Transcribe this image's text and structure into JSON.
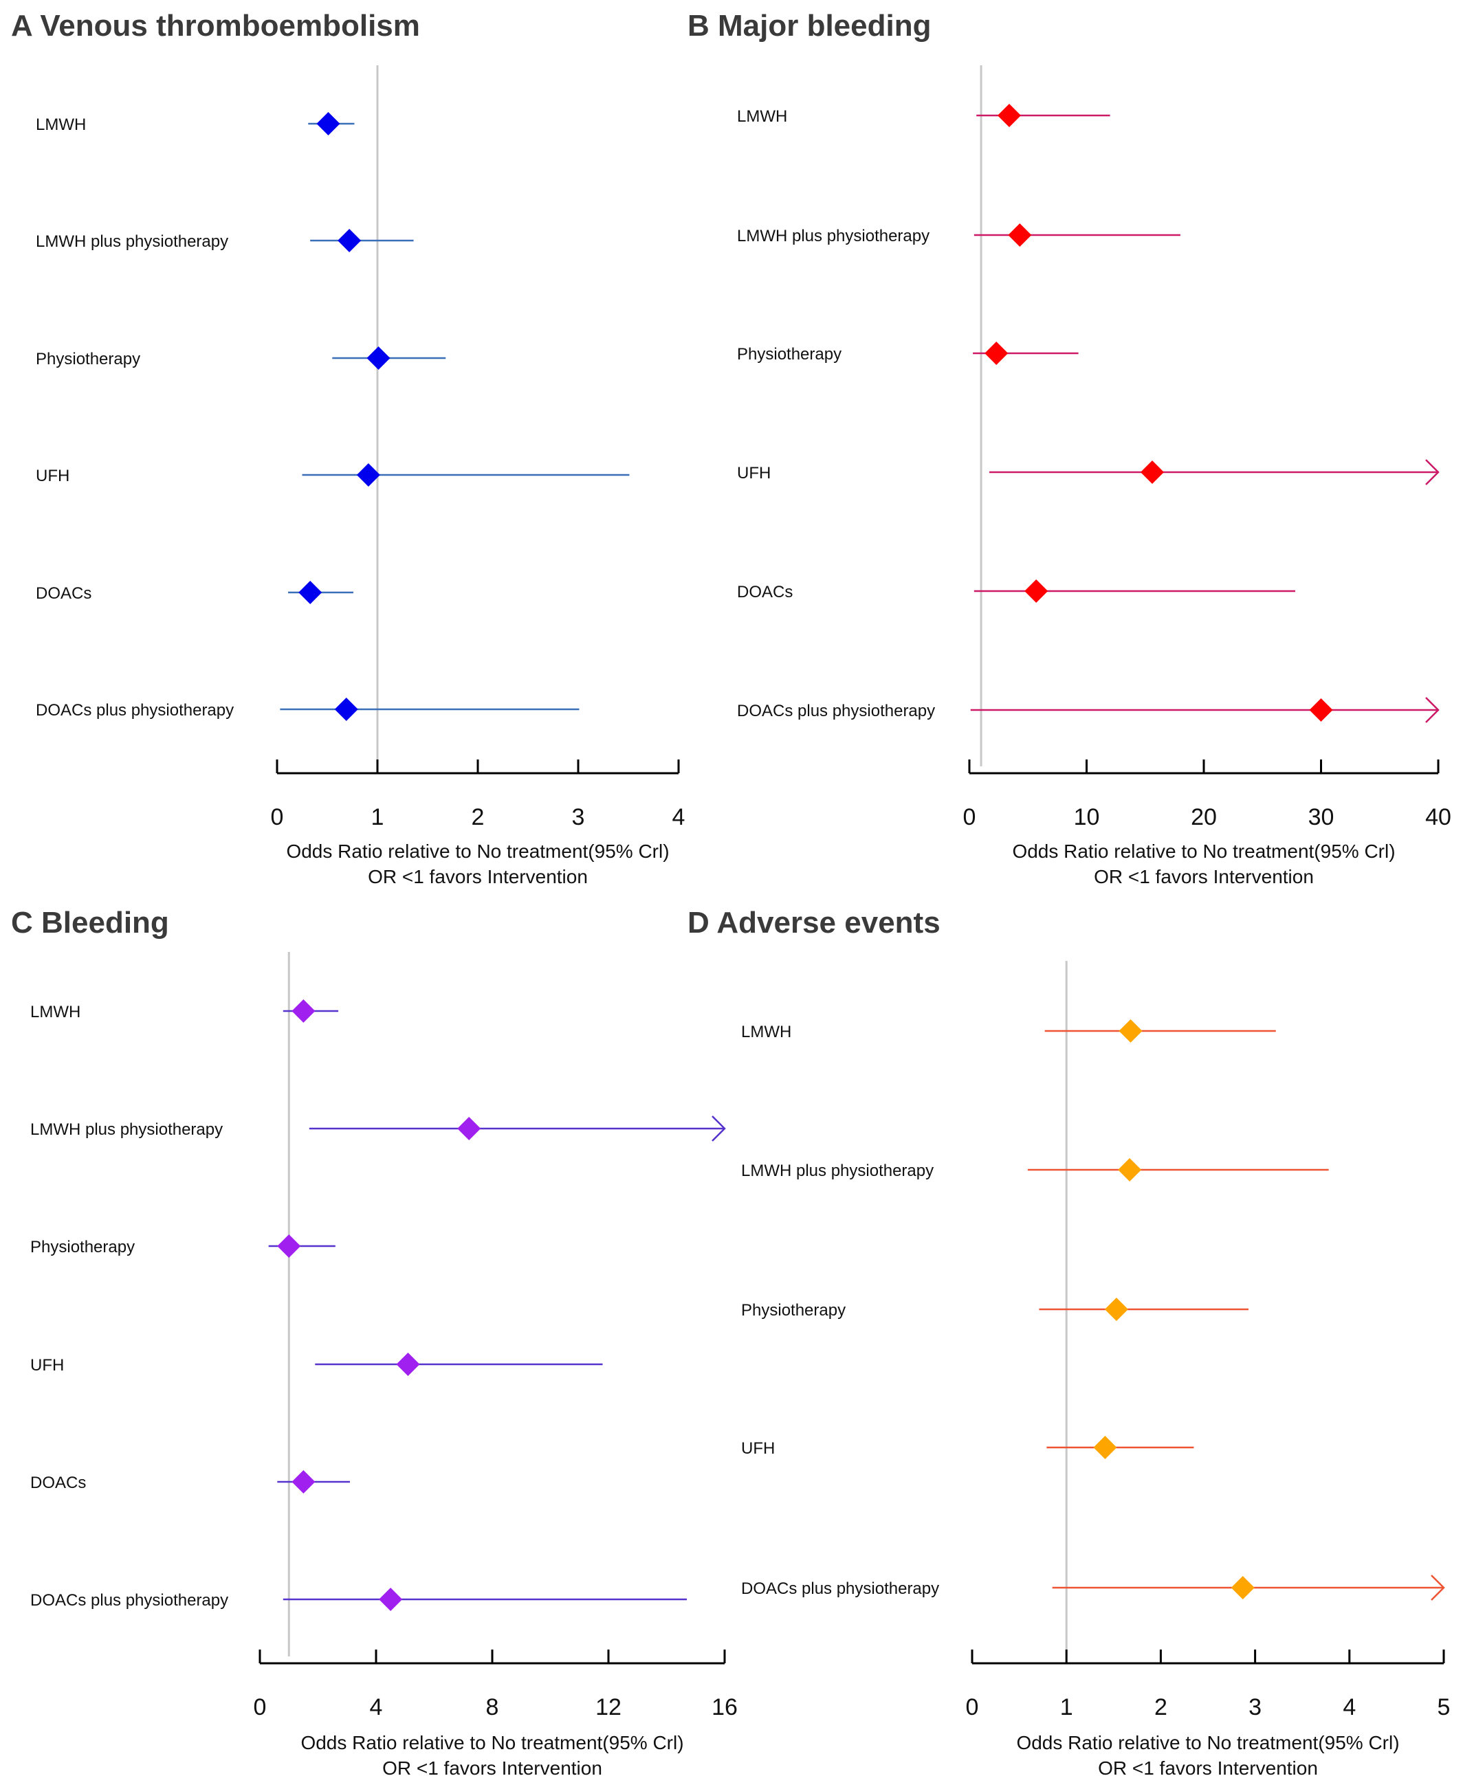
{
  "chart_data": [
    {
      "type": "forest",
      "panel_letter": "A",
      "title": "Venous thromboembolism",
      "xlim": [
        0,
        4
      ],
      "ticks": [
        0,
        1,
        2,
        3,
        4
      ],
      "tick_labels": [
        "0",
        "1",
        "2",
        "3",
        "4"
      ],
      "reference_line": 1,
      "xlabel_line1": "Odds Ratio relative to  No treatment(95% Crl)",
      "xlabel_line2": "OR <1 favors Intervention",
      "marker_color": "#0000ee",
      "line_color": "#3a6fb8",
      "rows": [
        {
          "label": "LMWH",
          "or": 0.51,
          "lower": 0.31,
          "upper": 0.77
        },
        {
          "label": "LMWH plus physiotherapy",
          "or": 0.72,
          "lower": 0.33,
          "upper": 1.36
        },
        {
          "label": "Physiotherapy",
          "or": 1.01,
          "lower": 0.55,
          "upper": 1.68
        },
        {
          "label": "UFH",
          "or": 0.91,
          "lower": 0.25,
          "upper": 3.51
        },
        {
          "label": "DOACs",
          "or": 0.33,
          "lower": 0.11,
          "upper": 0.76
        },
        {
          "label": "DOACs plus physiotherapy",
          "or": 0.69,
          "lower": 0.03,
          "upper": 3.01
        }
      ]
    },
    {
      "type": "forest",
      "panel_letter": "B",
      "title": "Major bleeding",
      "xlim": [
        0,
        40
      ],
      "ticks": [
        0,
        10,
        20,
        30,
        40
      ],
      "tick_labels": [
        "0",
        "10",
        "20",
        "30",
        "40"
      ],
      "reference_line": 1,
      "xlabel_line1": "Odds Ratio relative to  No treatment(95% Crl)",
      "xlabel_line2": "OR <1 favors Intervention",
      "marker_color": "#ff0000",
      "line_color": "#cc1a66",
      "rows": [
        {
          "label": "LMWH",
          "or": 3.4,
          "lower": 0.6,
          "upper": 12.0
        },
        {
          "label": "LMWH plus physiotherapy",
          "or": 4.3,
          "lower": 0.4,
          "upper": 18.0
        },
        {
          "label": "Physiotherapy",
          "or": 2.3,
          "lower": 0.3,
          "upper": 9.3
        },
        {
          "label": "UFH",
          "or": 15.6,
          "lower": 1.7,
          "upper": 40,
          "arrow": true
        },
        {
          "label": "DOACs",
          "or": 5.7,
          "lower": 0.4,
          "upper": 27.8
        },
        {
          "label": "DOACs plus physiotherapy",
          "or": 30.0,
          "lower": 0.1,
          "upper": 40,
          "arrow": true
        }
      ]
    },
    {
      "type": "forest",
      "panel_letter": "C",
      "title": "Bleeding",
      "xlim": [
        0,
        16
      ],
      "ticks": [
        0,
        4,
        8,
        12,
        16
      ],
      "tick_labels": [
        "0",
        "4",
        "8",
        "12",
        "16"
      ],
      "reference_line": 1,
      "xlabel_line1": "Odds Ratio relative to  No treatment(95% Crl)",
      "xlabel_line2": "OR <1 favors Intervention",
      "marker_color": "#a020f0",
      "line_color": "#5533cc",
      "rows": [
        {
          "label": "LMWH",
          "or": 1.5,
          "lower": 0.8,
          "upper": 2.7
        },
        {
          "label": "LMWH plus physiotherapy",
          "or": 7.2,
          "lower": 1.7,
          "upper": 16,
          "arrow": true
        },
        {
          "label": "Physiotherapy",
          "or": 1.0,
          "lower": 0.3,
          "upper": 2.6
        },
        {
          "label": "UFH",
          "or": 5.1,
          "lower": 1.9,
          "upper": 11.8
        },
        {
          "label": "DOACs",
          "or": 1.5,
          "lower": 0.6,
          "upper": 3.1
        },
        {
          "label": "DOACs plus physiotherapy",
          "or": 4.5,
          "lower": 0.8,
          "upper": 14.7
        }
      ]
    },
    {
      "type": "forest",
      "panel_letter": "D",
      "title": "Adverse events",
      "xlim": [
        0,
        5
      ],
      "ticks": [
        0,
        1,
        2,
        3,
        4,
        5
      ],
      "tick_labels": [
        "0",
        "1",
        "2",
        "3",
        "4",
        "5"
      ],
      "reference_line": 1,
      "xlabel_line1": "Odds Ratio relative to  No treatment(95% Crl)",
      "xlabel_line2": "OR <1 favors Intervention",
      "marker_color": "#ffa500",
      "line_color": "#ee5533",
      "rows": [
        {
          "label": "LMWH",
          "or": 1.68,
          "lower": 0.77,
          "upper": 3.22
        },
        {
          "label": "LMWH plus physiotherapy",
          "or": 1.67,
          "lower": 0.59,
          "upper": 3.78
        },
        {
          "label": "Physiotherapy",
          "or": 1.53,
          "lower": 0.71,
          "upper": 2.93
        },
        {
          "label": "UFH",
          "or": 1.41,
          "lower": 0.79,
          "upper": 2.35
        },
        {
          "label": "DOACs plus physiotherapy",
          "or": 2.87,
          "lower": 0.85,
          "upper": 5,
          "arrow": true
        }
      ]
    }
  ]
}
